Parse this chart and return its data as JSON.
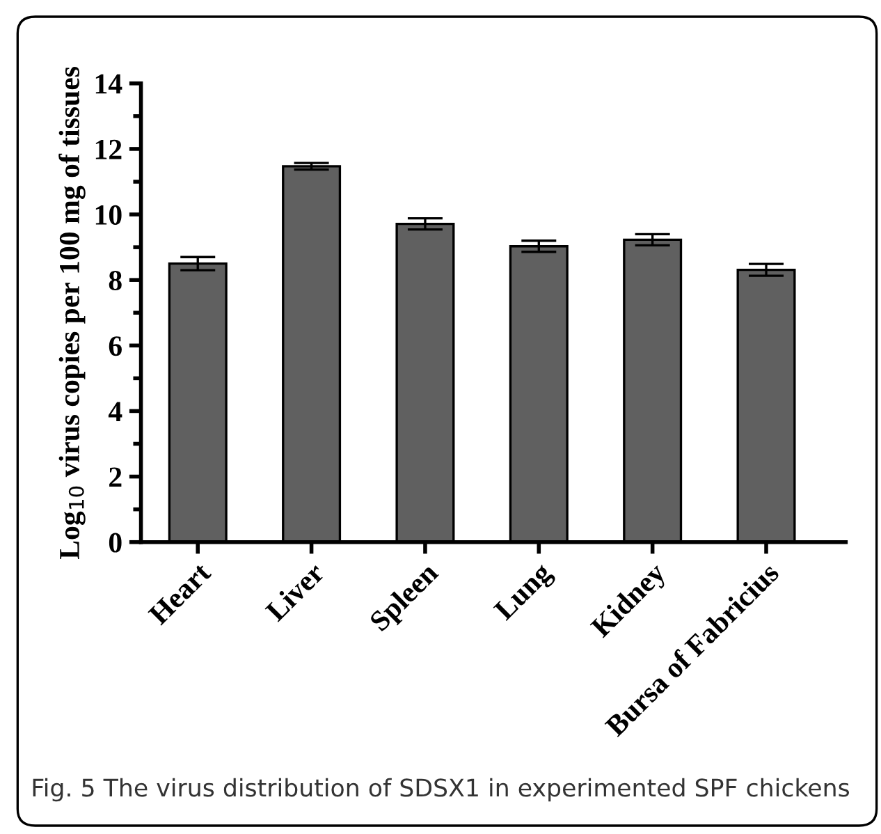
{
  "chart_data": {
    "type": "bar",
    "ylabel": "Log$_{10}$ virus copies per 100 mg of tissues",
    "categories": [
      "Heart",
      "Liver",
      "Spleen",
      "Lung",
      "Kidney",
      "Bursa of Fabricius"
    ],
    "values": [
      8.5,
      11.47,
      9.71,
      9.03,
      9.23,
      8.31
    ],
    "errors": [
      0.2,
      0.1,
      0.17,
      0.17,
      0.17,
      0.18
    ],
    "color": "#606060",
    "ylim": [
      0,
      14
    ],
    "yticks": [
      0,
      2,
      4,
      6,
      8,
      10,
      12,
      14
    ],
    "grid": false,
    "annotations": [
      "Fig. 5 The virus distribution of SDSX1 in experimented SPF chickens"
    ]
  }
}
